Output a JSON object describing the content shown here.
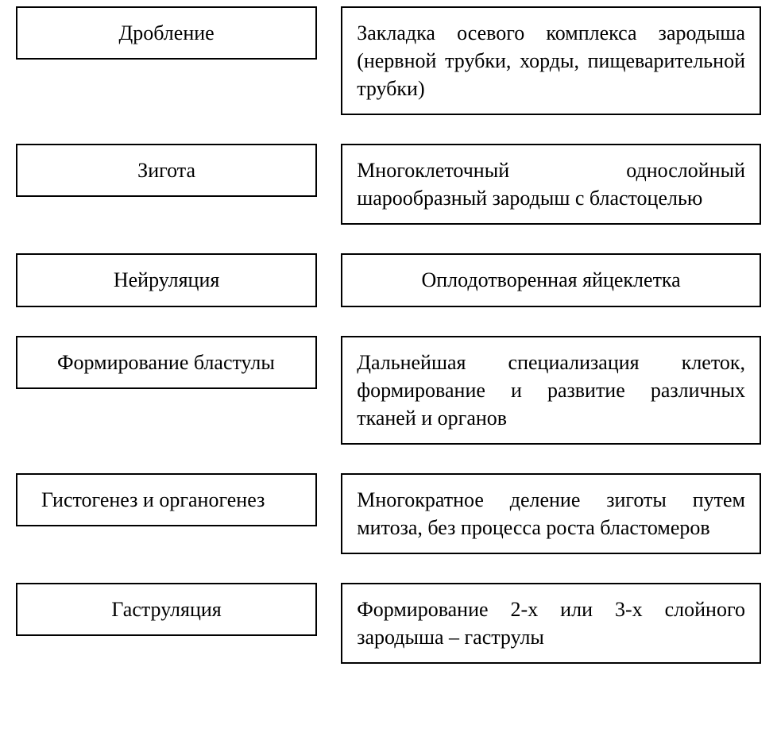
{
  "rows": [
    {
      "left": "Дробление",
      "right": "Закладка осевого комплекса зародыша (нервной трубки, хорды, пищеварительной трубки)",
      "leftAlign": "center",
      "rightAlign": "justify"
    },
    {
      "left": "Зигота",
      "right": "Многоклеточный однослойный шарообразный зародыш с бластоцелью",
      "leftAlign": "center",
      "rightAlign": "justify"
    },
    {
      "left": "Нейруляция",
      "right": "Оплодотворенная яйцеклетка",
      "leftAlign": "center",
      "rightAlign": "center"
    },
    {
      "left": "Формирование бластулы",
      "right": "Дальнейшая специализация клеток, формирование и развитие различных тканей и органов",
      "leftAlign": "indent",
      "rightAlign": "justify"
    },
    {
      "left": "Гистогенез и органогенез",
      "right": "Многократное деление зиготы путем митоза, без процесса роста бластомеров",
      "leftAlign": "indent-small",
      "rightAlign": "justify"
    },
    {
      "left": "Гаструляция",
      "right": "Формирование 2-х или 3-х слойного зародыша – гаструлы",
      "leftAlign": "center",
      "rightAlign": "justify"
    }
  ],
  "styling": {
    "border_color": "#000000",
    "border_width": 2.5,
    "background_color": "#ffffff",
    "text_color": "#000000",
    "font_family": "Times New Roman",
    "font_size": 26,
    "left_box_width": 380,
    "right_box_width": 530,
    "gap_between_columns": 30,
    "gap_between_rows": 36
  }
}
